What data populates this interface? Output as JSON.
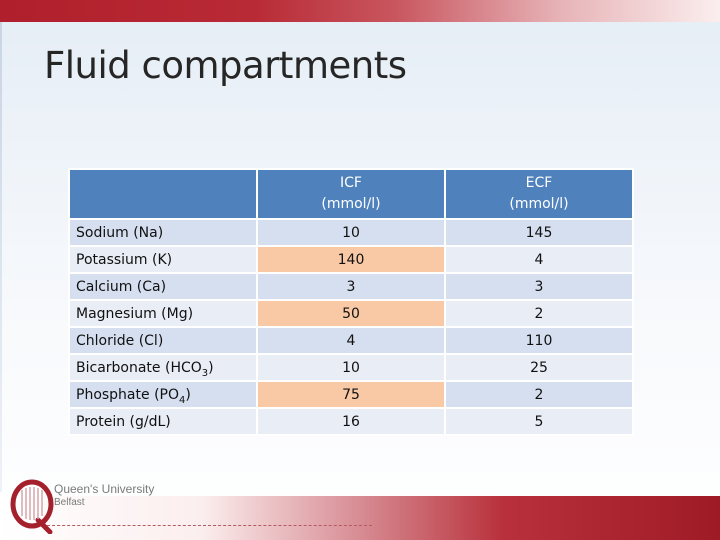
{
  "slide": {
    "title": "Fluid compartments"
  },
  "table": {
    "headers": {
      "empty": "",
      "icf_line1": "ICF",
      "icf_line2": "(mmol/l)",
      "ecf_line1": "ECF",
      "ecf_line2": "(mmol/l)"
    },
    "rows": [
      {
        "label": "Sodium (Na)",
        "label_sub": "",
        "label_suffix": "",
        "icf": "10",
        "ecf": "145"
      },
      {
        "label": "Potassium (K)",
        "label_sub": "",
        "label_suffix": "",
        "icf": "140",
        "ecf": "4"
      },
      {
        "label": "Calcium (Ca)",
        "label_sub": "",
        "label_suffix": "",
        "icf": "3",
        "ecf": "3"
      },
      {
        "label": "Magnesium (Mg)",
        "label_sub": "",
        "label_suffix": "",
        "icf": "50",
        "ecf": "2"
      },
      {
        "label": "Chloride (Cl)",
        "label_sub": "",
        "label_suffix": "",
        "icf": "4",
        "ecf": "110"
      },
      {
        "label": "Bicarbonate (HCO",
        "label_sub": "3",
        "label_suffix": ")",
        "icf": "10",
        "ecf": "25"
      },
      {
        "label": "Phosphate (PO",
        "label_sub": "4",
        "label_suffix": ")",
        "icf": "75",
        "ecf": "2"
      },
      {
        "label": "Protein (g/dL)",
        "label_sub": "",
        "label_suffix": "",
        "icf": "16",
        "ecf": "5"
      }
    ],
    "highlighted_rows": [
      1,
      3,
      6
    ],
    "colors": {
      "header": "#4f81bd",
      "row_dark": "#d6dff0",
      "row_light": "#e9edf6",
      "highlight": "#f9c9a6"
    }
  },
  "logo": {
    "line1": "Queen's University",
    "line2": "Belfast",
    "icon": "qub-crest-icon"
  }
}
